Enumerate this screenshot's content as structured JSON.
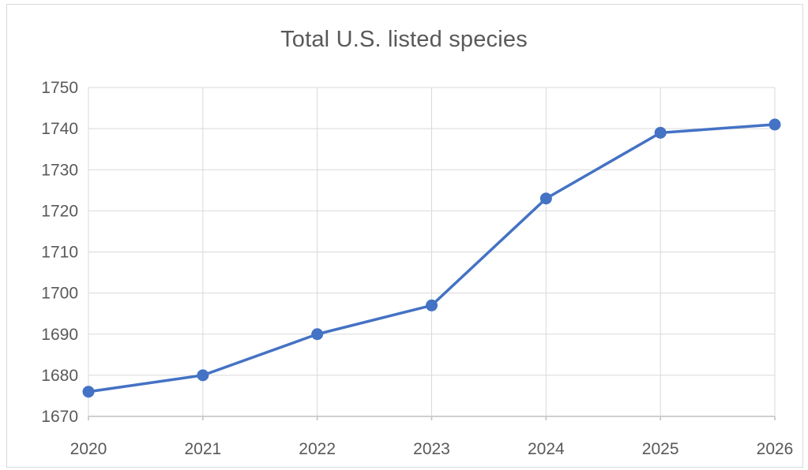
{
  "chart_data": {
    "type": "line",
    "title": "Total U.S. listed species",
    "xlabel": "",
    "ylabel": "",
    "x": [
      "2020",
      "2021",
      "2022",
      "2023",
      "2024",
      "2025",
      "2026"
    ],
    "series": [
      {
        "values": [
          1676,
          1680,
          1690,
          1697,
          1723,
          1739,
          1741
        ]
      }
    ],
    "y_ticks": [
      "1670",
      "1680",
      "1690",
      "1700",
      "1710",
      "1720",
      "1730",
      "1740",
      "1750"
    ],
    "ylim": [
      1670,
      1750
    ],
    "grid": true,
    "legend": "none",
    "colors": {
      "series": "#4472c4",
      "grid": "#d9d9d9",
      "axis": "#bfbfbf",
      "text": "#595959"
    }
  }
}
